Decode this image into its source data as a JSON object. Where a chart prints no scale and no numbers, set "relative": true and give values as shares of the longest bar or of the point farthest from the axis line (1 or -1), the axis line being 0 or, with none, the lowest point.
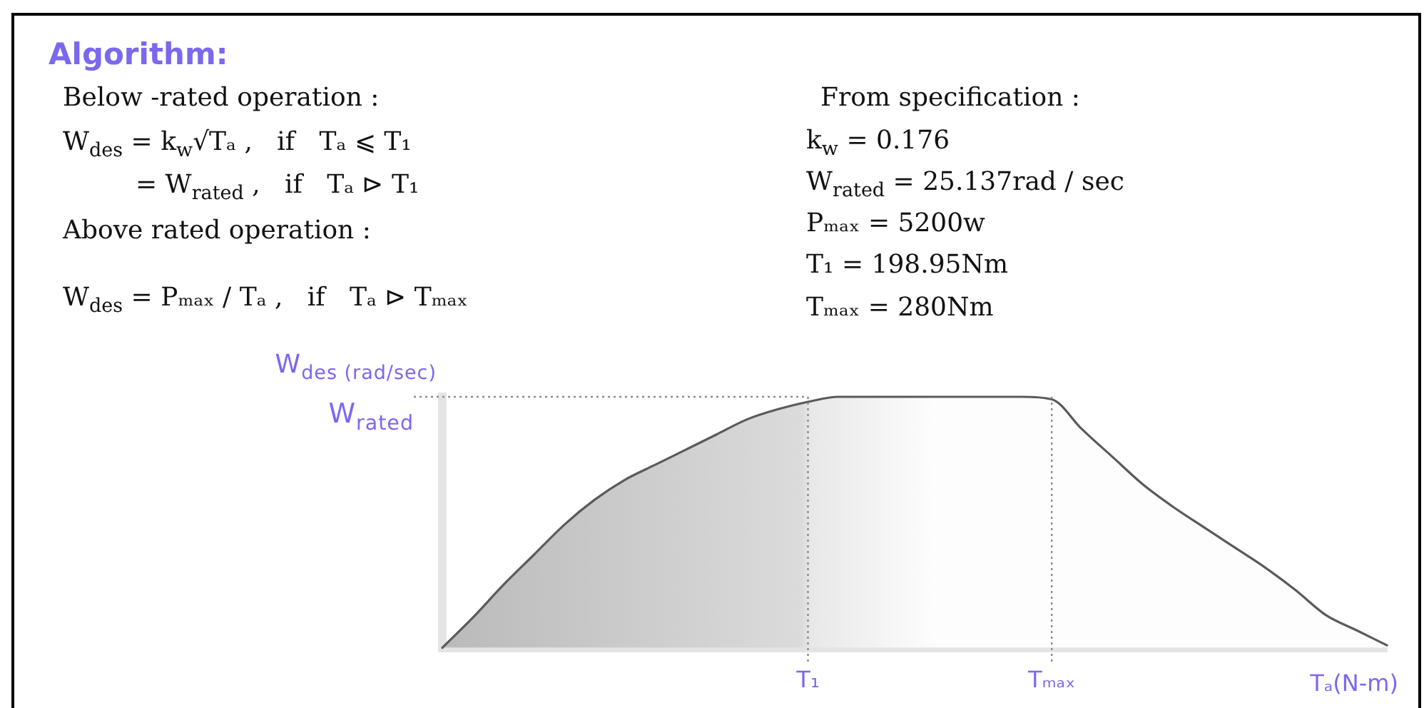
{
  "chart_data": {
    "type": "area",
    "title": "Algorithm:",
    "ylabel": "W$_{des (rad/sec)}$",
    "xlabel": "Tₐ(N-m)",
    "relative": true,
    "categories": [
      null,
      null,
      null,
      null,
      null,
      null,
      null,
      null,
      null,
      null,
      null,
      null,
      "T₁",
      null,
      null,
      null,
      null,
      null,
      null,
      null,
      "Tₘₐₓ",
      null,
      null,
      null,
      null,
      null,
      null,
      null,
      null,
      null,
      null,
      null
    ],
    "color": "#5a5a5a",
    "values": [
      0,
      0.12,
      0.25,
      0.37,
      0.49,
      0.59,
      0.67,
      0.73,
      0.79,
      0.85,
      0.91,
      0.95,
      0.98,
      1,
      1,
      1,
      1,
      1,
      1,
      1,
      0.99,
      0.87,
      0.76,
      0.65,
      0.56,
      0.48,
      0.4,
      0.32,
      0.23,
      0.13,
      0.07,
      0.01
    ],
    "ref_lines": [
      {
        "axis": "y",
        "value": 1,
        "label": "W$_{rated}$",
        "line_style": "dotted",
        "color": "#8c8c8c"
      },
      {
        "axis": "x",
        "value": "T₁",
        "line_style": "dotted",
        "color": "#8c8c8c"
      },
      {
        "axis": "x",
        "value": "Tₘₐₓ",
        "line_style": "dotted",
        "color": "#8c8c8c"
      }
    ],
    "annotations": [
      "Below -rated operation :",
      "W$_{des}$ = k$_{w}$√Tₐ ,   if   Tₐ ⩽ T₁",
      "= W$_{rated}$ ,   if   Tₐ ⊳ T₁",
      "Above rated operation :",
      "W$_{des}$ = Pₘₐₓ / Tₐ ,   if   Tₐ ⊳ Tₘₐₓ",
      "From specification :",
      "k$_{w}$ = 0.176",
      "W$_{rated}$ = 25.137rad / sec",
      "Pₘₐₓ = 5200w",
      "T₁ = 198.95Nm",
      "Tₘₐₓ = 280Nm"
    ]
  }
}
